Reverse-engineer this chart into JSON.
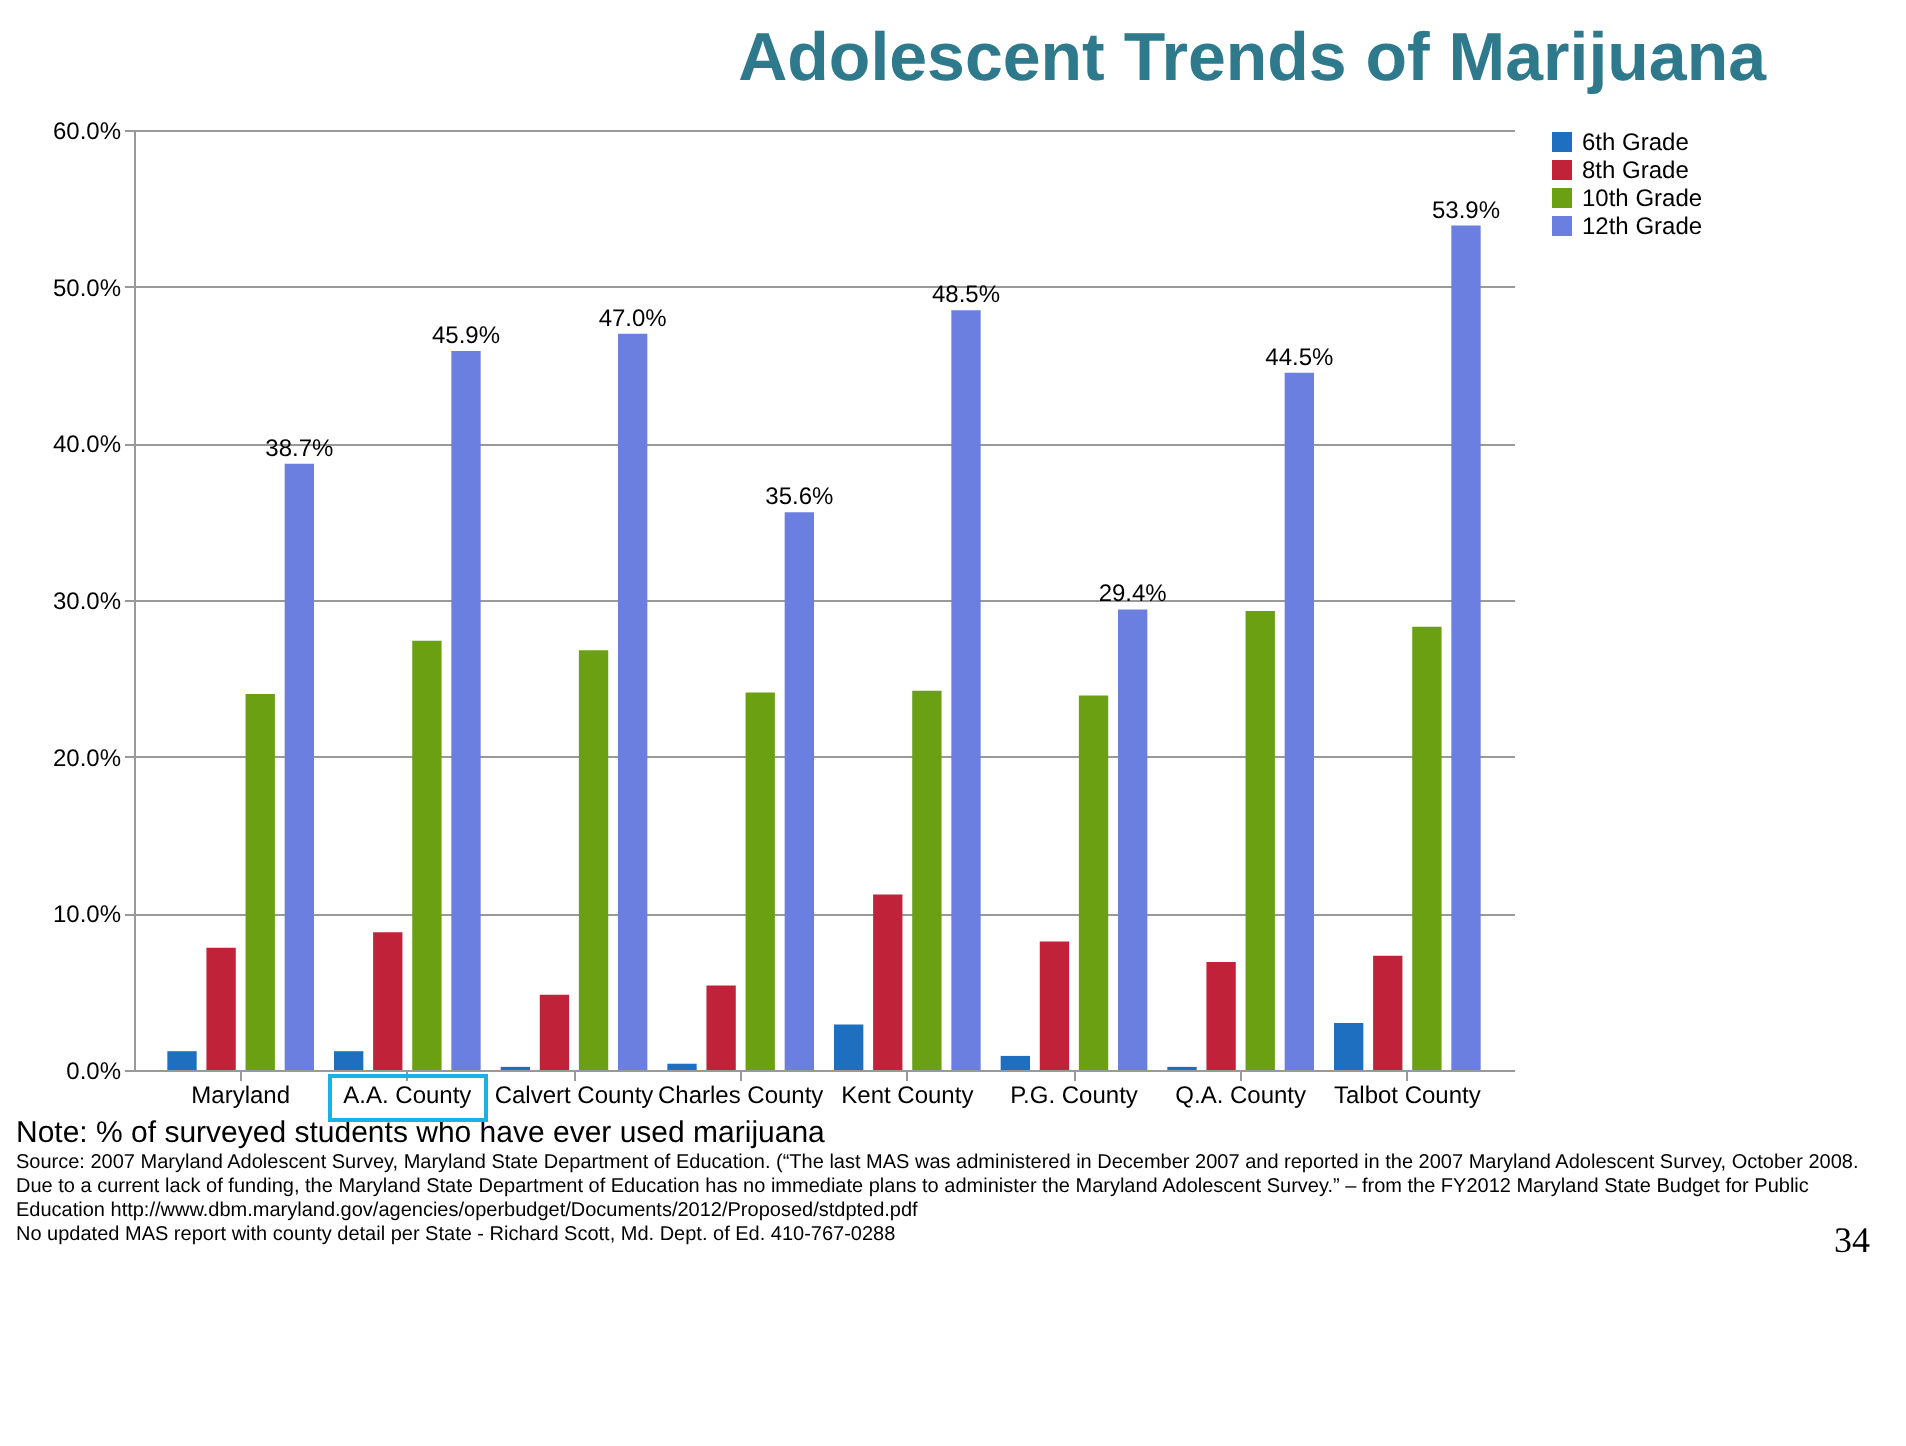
{
  "chart_data": {
    "type": "bar",
    "title": "Adolescent Trends of Marijuana",
    "categories": [
      "Maryland",
      "A.A. County",
      "Calvert County",
      "Charles County",
      "Kent County",
      "P.G. County",
      "Q.A. County",
      "Talbot County"
    ],
    "series": [
      {
        "name": "6th Grade",
        "color": "#1f6fc0",
        "values": [
          1.2,
          1.2,
          0.2,
          0.4,
          2.9,
          0.9,
          0.2,
          3.0
        ]
      },
      {
        "name": "8th Grade",
        "color": "#c0223a",
        "values": [
          7.8,
          8.8,
          4.8,
          5.4,
          11.2,
          8.2,
          6.9,
          7.3
        ]
      },
      {
        "name": "10th Grade",
        "color": "#6aa012",
        "values": [
          24.0,
          27.4,
          26.8,
          24.1,
          24.2,
          23.9,
          29.3,
          28.3
        ]
      },
      {
        "name": "12th Grade",
        "color": "#6a7fe0",
        "values": [
          38.7,
          45.9,
          47.0,
          35.6,
          48.5,
          29.4,
          44.5,
          53.9
        ],
        "value_labels": [
          "38.7%",
          "45.9%",
          "47.0%",
          "35.6%",
          "48.5%",
          "29.4%",
          "44.5%",
          "53.9%"
        ]
      }
    ],
    "ylim": [
      0,
      60
    ],
    "yticks": [
      {
        "value": 0,
        "label": "0.0%"
      },
      {
        "value": 10,
        "label": "10.0%"
      },
      {
        "value": 20,
        "label": "20.0%"
      },
      {
        "value": 30,
        "label": "30.0%"
      },
      {
        "value": 40,
        "label": "40.0%"
      },
      {
        "value": 50,
        "label": "50.0%"
      },
      {
        "value": 60,
        "label": "60.0%"
      }
    ],
    "grid": "y",
    "legend": "right",
    "annotations": [
      "Note:  % of surveyed students who have ever used marijuana",
      "Source:  2007 Maryland Adolescent Survey, Maryland State Department of Education. (“The last MAS was administered in December 2007 and reported in the 2007 Maryland Adolescent Survey, October 2008. Due to a current lack of funding, the Maryland State Department of Education has no immediate plans to administer the Maryland Adolescent Survey.” – from the FY2012 Maryland State Budget  for Public Education http://www.dbm.maryland.gov/agencies/operbudget/Documents/2012/Proposed/stdpted.pdf",
      "No updated MAS report with county detail per State - Richard Scott, Md. Dept. of Ed. 410-767-0288",
      "34"
    ]
  }
}
